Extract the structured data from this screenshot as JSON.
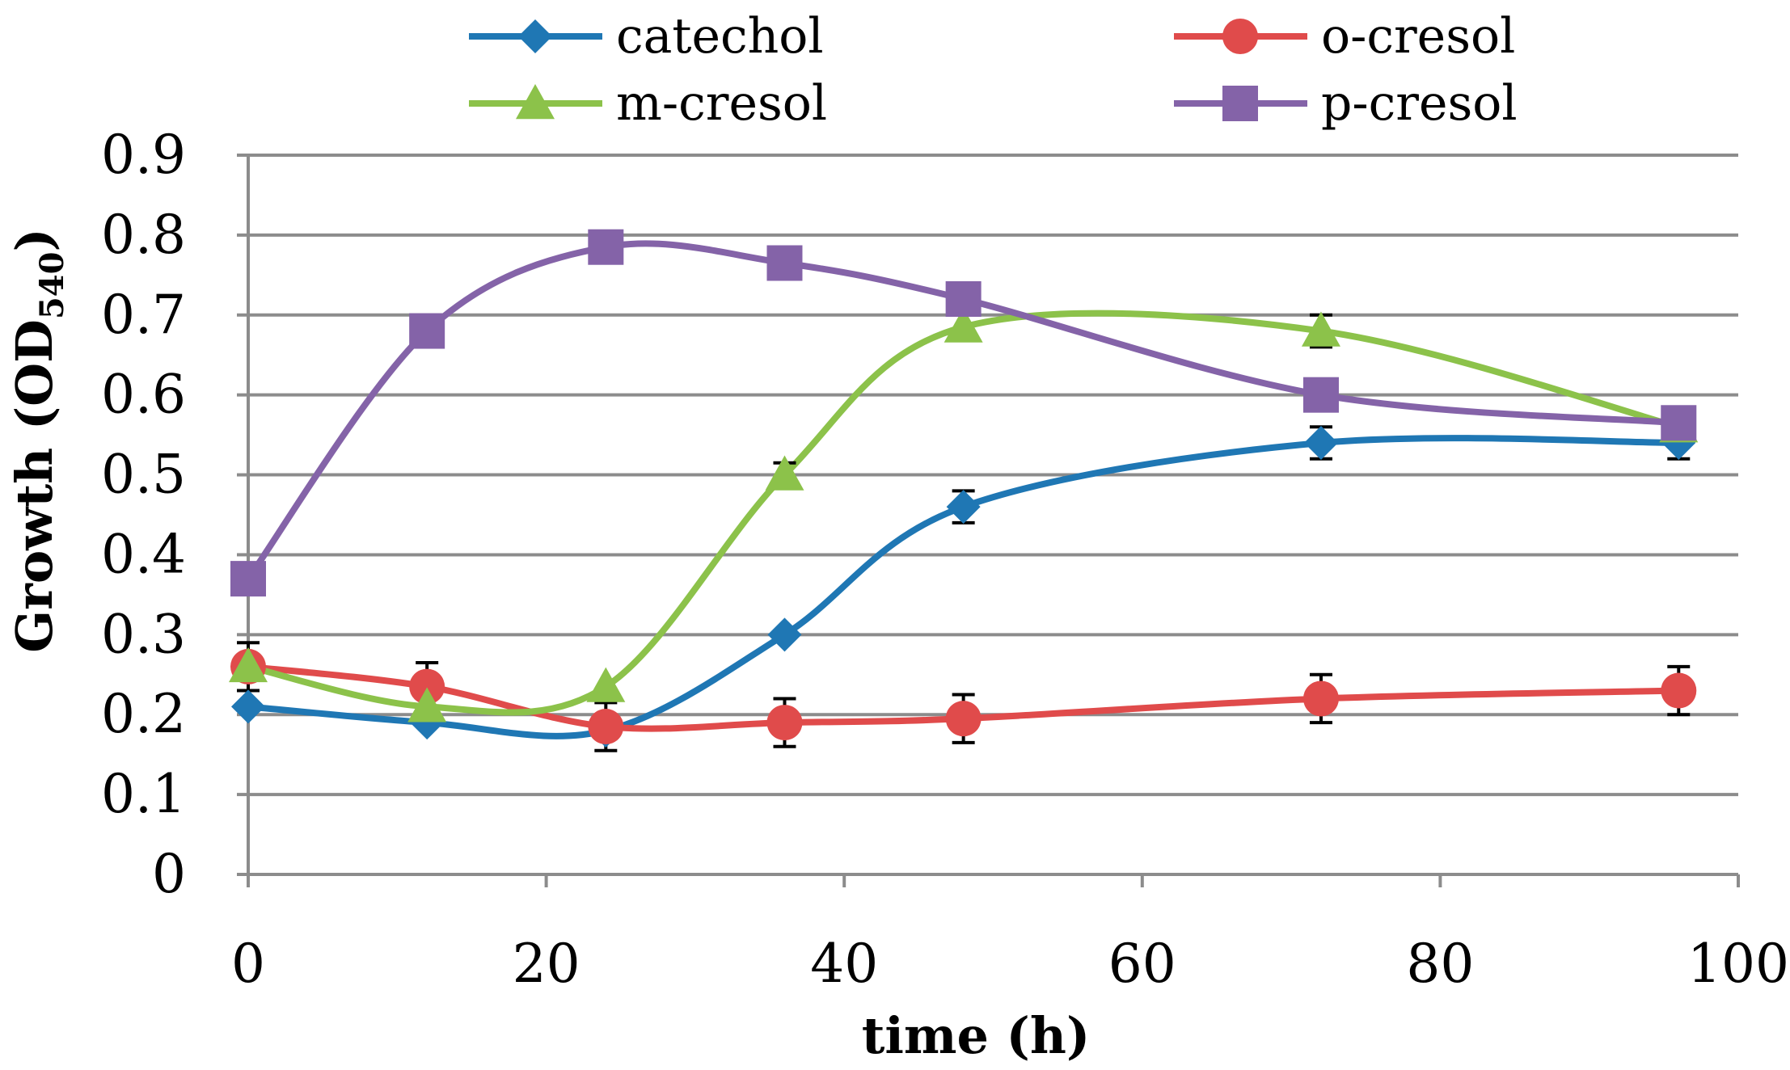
{
  "chart_data": {
    "type": "line",
    "title": "",
    "xlabel": "time (h)",
    "ylabel": "Growth (OD",
    "ylabel_subscript": "540",
    "ylabel_close": ")",
    "xlim": [
      0,
      100
    ],
    "ylim": [
      0,
      0.9
    ],
    "xticks": [
      "0",
      "20",
      "40",
      "60",
      "80",
      "100"
    ],
    "yticks": [
      "0",
      "0.1",
      "0.2",
      "0.3",
      "0.4",
      "0.5",
      "0.6",
      "0.7",
      "0.8",
      "0.9"
    ],
    "grid": true,
    "legend": "top",
    "x": [
      0,
      12,
      24,
      36,
      48,
      72,
      96
    ],
    "series": [
      {
        "name": "catechol",
        "color": "#1F77B4",
        "marker": "diamond",
        "values": [
          0.21,
          0.19,
          0.18,
          0.3,
          0.46,
          0.54,
          0.54
        ],
        "errors": [
          0.0,
          0.0,
          0.0,
          0.0,
          0.02,
          0.02,
          0.02
        ]
      },
      {
        "name": "o-cresol",
        "color": "#E04B4B",
        "marker": "circle",
        "values": [
          0.26,
          0.235,
          0.185,
          0.19,
          0.195,
          0.22,
          0.23
        ],
        "errors": [
          0.03,
          0.03,
          0.03,
          0.03,
          0.03,
          0.03,
          0.03
        ]
      },
      {
        "name": "m-cresol",
        "color": "#8CC24A",
        "marker": "triangle",
        "values": [
          0.26,
          0.21,
          0.235,
          0.5,
          0.685,
          0.68,
          0.56
        ],
        "errors": [
          0.0,
          0.0,
          0.0,
          0.015,
          0.0,
          0.02,
          0.0
        ]
      },
      {
        "name": "p-cresol",
        "color": "#8463A8",
        "marker": "square",
        "values": [
          0.37,
          0.68,
          0.785,
          0.765,
          0.72,
          0.6,
          0.565
        ],
        "errors": [
          0.0,
          0.0,
          0.02,
          0.0,
          0.0,
          0.0,
          0.0
        ]
      }
    ]
  }
}
